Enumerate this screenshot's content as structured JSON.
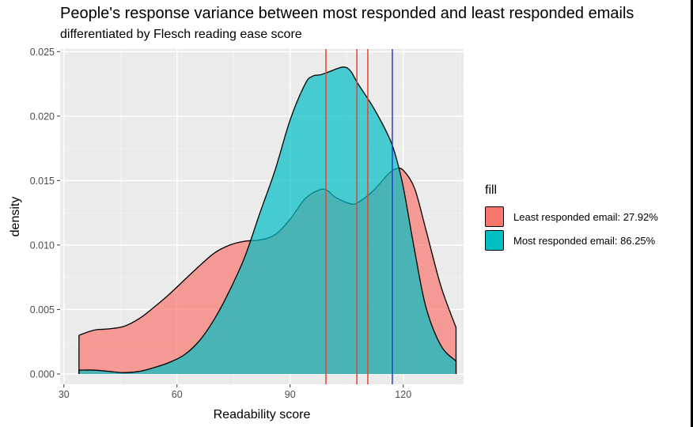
{
  "title": "People's response variance between most responded and least responded emails",
  "subtitle": "differentiated by Flesch reading ease score",
  "chart_data": {
    "type": "area",
    "xlabel": "Readability score",
    "ylabel": "density",
    "xlim": [
      29,
      136
    ],
    "ylim": [
      -0.0008,
      0.0252
    ],
    "x_ticks": [
      30,
      60,
      90,
      120
    ],
    "y_ticks": [
      0.0,
      0.005,
      0.01,
      0.015,
      0.02,
      0.025
    ],
    "y_tick_labels": [
      "0.000",
      "0.005",
      "0.010",
      "0.015",
      "0.020",
      "0.025"
    ],
    "grid": true,
    "background": "#EBEBEB",
    "legend": {
      "title": "fill",
      "position": "right",
      "entries": [
        {
          "label": "Least responded email: 27.92%",
          "color": "#F8766D"
        },
        {
          "label": "Most responded email: 86.25%",
          "color": "#00BFC4"
        }
      ]
    },
    "series": [
      {
        "name": "Least responded email: 27.92%",
        "color": "#F8766D",
        "x": [
          34,
          38,
          42,
          46,
          50,
          54,
          58,
          62,
          66,
          70,
          74,
          78,
          82,
          86,
          90,
          94,
          98,
          100,
          102,
          106,
          108,
          112,
          116,
          118,
          120,
          123,
          126,
          130,
          134
        ],
        "y": [
          0.003,
          0.0034,
          0.0035,
          0.0037,
          0.0043,
          0.0052,
          0.0062,
          0.0073,
          0.0084,
          0.0094,
          0.01,
          0.0103,
          0.0104,
          0.0108,
          0.012,
          0.0136,
          0.0143,
          0.0142,
          0.0137,
          0.0132,
          0.0133,
          0.0142,
          0.0155,
          0.0159,
          0.0158,
          0.0144,
          0.0112,
          0.0068,
          0.0036
        ]
      },
      {
        "name": "Most responded email: 86.25%",
        "color": "#00BFC4",
        "x": [
          34,
          38,
          42,
          46,
          50,
          54,
          58,
          62,
          66,
          70,
          74,
          78,
          82,
          86,
          90,
          94,
          96,
          98,
          100,
          104,
          106,
          108,
          112,
          116,
          118,
          120,
          123,
          126,
          130,
          134
        ],
        "y": [
          0.0003,
          0.0003,
          0.0002,
          0.0001,
          0.0002,
          0.0005,
          0.0009,
          0.0015,
          0.0026,
          0.0043,
          0.0065,
          0.0091,
          0.0125,
          0.0158,
          0.0197,
          0.0225,
          0.0231,
          0.0232,
          0.0234,
          0.0238,
          0.0235,
          0.0225,
          0.0207,
          0.0185,
          0.0169,
          0.0145,
          0.0096,
          0.0052,
          0.0022,
          0.001
        ]
      }
    ],
    "vlines": [
      {
        "x": 99.5,
        "color": "#E8402E"
      },
      {
        "x": 107.7,
        "color": "#E8402E"
      },
      {
        "x": 110.6,
        "color": "#E8402E"
      },
      {
        "x": 117.1,
        "color": "#1F3FD8"
      }
    ]
  }
}
